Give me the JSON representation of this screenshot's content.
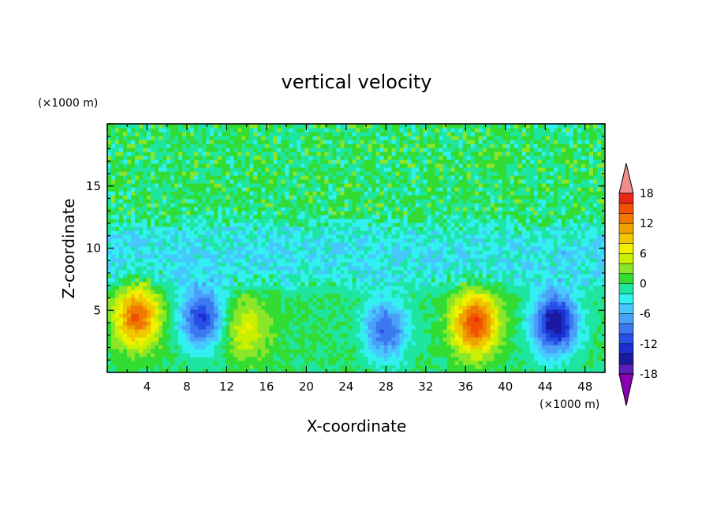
{
  "chart_data": {
    "type": "heatmap",
    "title": "vertical velocity",
    "xlabel": "X-coordinate",
    "ylabel": "Z-coordinate",
    "x_unit": "(×1000 m)",
    "y_unit": "(×1000 m)",
    "xlim": [
      0,
      50
    ],
    "ylim": [
      0,
      20
    ],
    "x_ticks": [
      "4",
      "8",
      "12",
      "16",
      "20",
      "24",
      "28",
      "32",
      "36",
      "40",
      "44",
      "48"
    ],
    "y_ticks": [
      "5",
      "10",
      "15"
    ],
    "colorbar": {
      "levels": [
        -20,
        -18,
        -16,
        -14,
        -12,
        -10,
        -8,
        -6,
        -4,
        -2,
        0,
        2,
        4,
        6,
        8,
        10,
        12,
        14,
        16,
        18,
        20
      ],
      "tick_labels": [
        "18",
        "12",
        "6",
        "0",
        "-6",
        "-12",
        "-18"
      ],
      "colors": [
        "#8b00b0",
        "#5a1fb4",
        "#1a1aa0",
        "#1c2fd0",
        "#2850e6",
        "#3c78f0",
        "#4aa0f8",
        "#46c8ff",
        "#32f0f0",
        "#1ee6a0",
        "#32dc32",
        "#8ce628",
        "#c8f000",
        "#f0f000",
        "#f0c800",
        "#f0a000",
        "#f07800",
        "#f05000",
        "#e62814",
        "#f08c8c"
      ]
    },
    "features": [
      {
        "x": 3,
        "z": 4.5,
        "peak": 14
      },
      {
        "x": 37,
        "z": 4,
        "peak": 16
      },
      {
        "x": 9.5,
        "z": 4.5,
        "peak": -12
      },
      {
        "x": 28,
        "z": 3.5,
        "peak": -10
      },
      {
        "x": 45,
        "z": 4,
        "peak": -16
      },
      {
        "x": 14,
        "z": 3.5,
        "peak": 6
      }
    ]
  }
}
